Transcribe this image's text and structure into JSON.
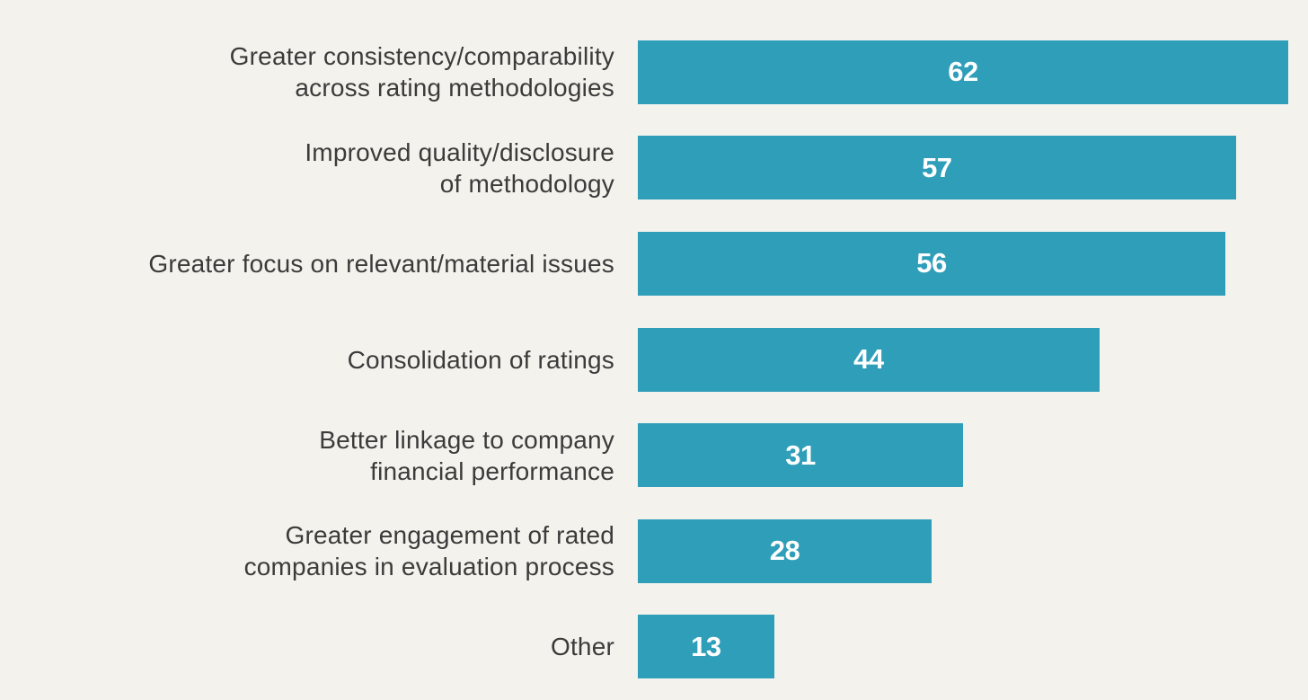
{
  "page": {
    "background_color": "#f3f2ec"
  },
  "chart_data": {
    "type": "bar",
    "orientation": "horizontal",
    "title": "",
    "xlabel": "",
    "ylabel": "",
    "categories": [
      "Greater consistency/comparability across rating methodologies",
      "Improved quality/disclosure of methodology",
      "Greater focus on relevant/material issues",
      "Consolidation of ratings",
      "Better linkage to company financial performance",
      "Greater engagement of rated companies in evaluation process",
      "Other"
    ],
    "wrapped_labels": [
      "Greater consistency/comparability\nacross rating methodologies",
      "Improved quality/disclosure\nof methodology",
      "Greater focus on relevant/material issues",
      "Consolidation of ratings",
      "Better linkage to company\nfinancial performance",
      "Greater engagement of rated\ncompanies in evaluation process",
      "Other"
    ],
    "values": [
      62,
      57,
      56,
      44,
      31,
      28,
      13
    ],
    "max_value": 62,
    "xlim": [
      0,
      62
    ],
    "grid": false,
    "legend": false,
    "value_label_position": "inside-center",
    "colors": {
      "bar": "#2f9eb9",
      "value_label": "#ffffff",
      "category_label": "#3b3b3b",
      "background": "#f3f2ec"
    }
  }
}
